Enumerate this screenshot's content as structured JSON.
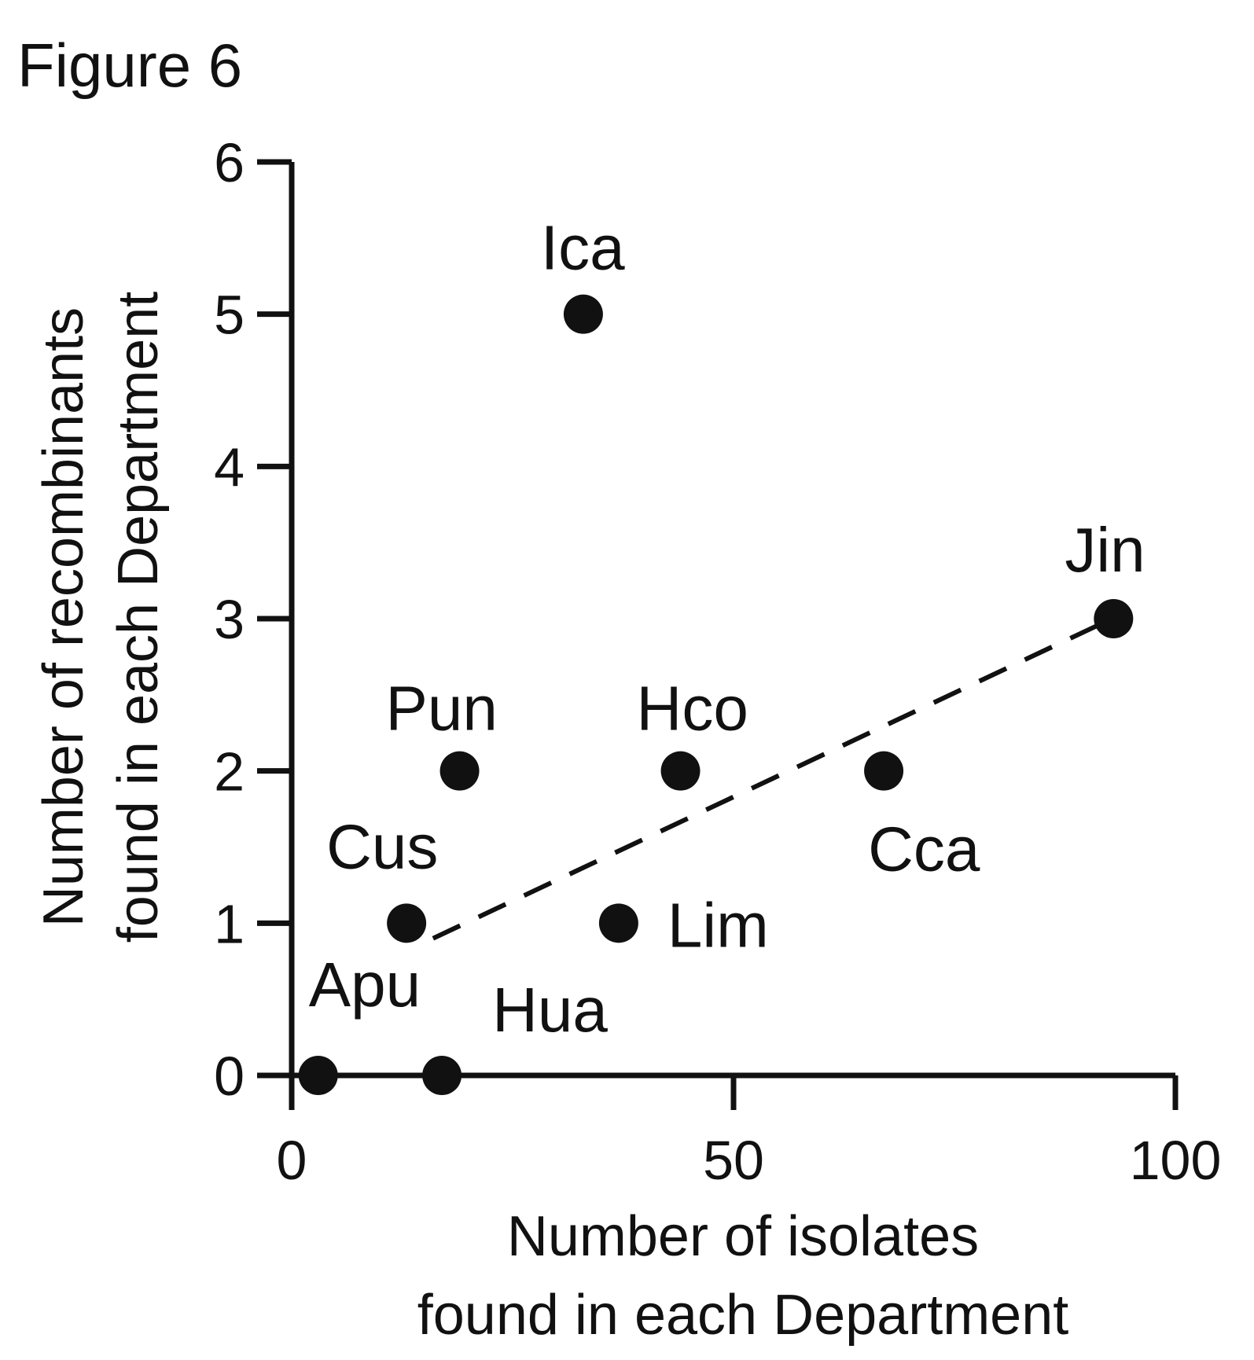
{
  "figure_label": "Figure 6",
  "chart_data": {
    "type": "scatter",
    "title": "",
    "xlabel": [
      "Number of isolates",
      "found in each Department"
    ],
    "ylabel": [
      "Number of recombinants",
      "found in each Department"
    ],
    "xlim": [
      0,
      100
    ],
    "ylim": [
      0,
      6
    ],
    "xticks": [
      0,
      50,
      100
    ],
    "yticks": [
      0,
      1,
      2,
      3,
      4,
      5,
      6
    ],
    "grid": false,
    "legend": "none",
    "color": "#111111",
    "points": [
      {
        "label": "Apu",
        "x": 3,
        "y": 0
      },
      {
        "label": "Hua",
        "x": 17,
        "y": 0
      },
      {
        "label": "Cus",
        "x": 13,
        "y": 1
      },
      {
        "label": "Lim",
        "x": 37,
        "y": 1
      },
      {
        "label": "Pun",
        "x": 19,
        "y": 2
      },
      {
        "label": "Hco",
        "x": 44,
        "y": 2
      },
      {
        "label": "Cca",
        "x": 67,
        "y": 2
      },
      {
        "label": "Ica",
        "x": 33,
        "y": 5
      },
      {
        "label": "Jin",
        "x": 93,
        "y": 3
      }
    ],
    "trend_line": {
      "style": "dashed",
      "from": [
        16,
        0.9
      ],
      "to": [
        91,
        2.95
      ]
    }
  }
}
